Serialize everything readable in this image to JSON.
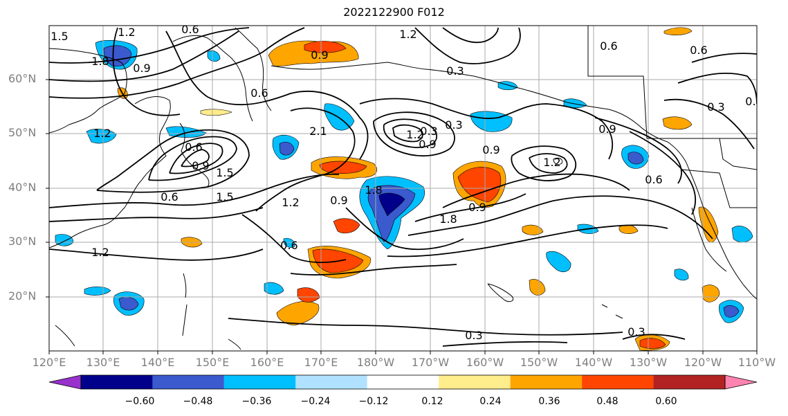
{
  "title": "2022122900 F012",
  "lat_labels": [
    "60°N",
    "50°N",
    "40°N",
    "30°N",
    "20°N"
  ],
  "lon_labels": [
    "120°E",
    "130°E",
    "140°E",
    "150°E",
    "160°E",
    "170°E",
    "180°W",
    "170°W",
    "160°W",
    "150°W",
    "140°W",
    "130°W",
    "120°W",
    "110°W"
  ],
  "contour_labels": [
    "1.5",
    "1.2",
    "0.6",
    "1.2",
    "0.9",
    "0.3",
    "0.6",
    "0.6",
    "1.8",
    "0.9",
    "1.2",
    "0.6",
    "0.9",
    "1.5",
    "2.1",
    "1.8",
    "0.6",
    "0.9",
    "1.2",
    "0.9",
    "0.3",
    "0.3",
    "0.9",
    "0.6",
    "1.2",
    "0.9",
    "1.8",
    "1.5",
    "1.2",
    "0.9",
    "0.6",
    "1.2",
    "0.3",
    "0.3",
    "0.3",
    "0.9",
    "0.6"
  ],
  "colorbar": {
    "colors": [
      "#9932cc",
      "#00008b",
      "#3a5acd",
      "#00bfff",
      "#b0e2ff",
      "#ffffff",
      "#ffec8b",
      "#ffa500",
      "#ff4500",
      "#b22222",
      "#ff83b0"
    ],
    "ticks": [
      "−0.60",
      "−0.48",
      "−0.36",
      "−0.24",
      "−0.12",
      "0.12",
      "0.24",
      "0.36",
      "0.48",
      "0.60"
    ]
  }
}
